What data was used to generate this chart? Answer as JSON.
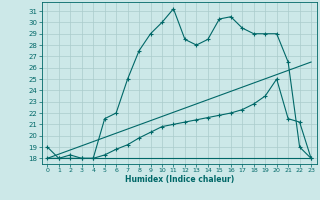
{
  "xlabel": "Humidex (Indice chaleur)",
  "ylabel": "",
  "bg_color": "#cce8e8",
  "grid_color": "#b8d8d8",
  "line_color": "#006868",
  "xlim": [
    -0.5,
    23.5
  ],
  "ylim": [
    17.5,
    31.8
  ],
  "xticks": [
    0,
    1,
    2,
    3,
    4,
    5,
    6,
    7,
    8,
    9,
    10,
    11,
    12,
    13,
    14,
    15,
    16,
    17,
    18,
    19,
    20,
    21,
    22,
    23
  ],
  "yticks": [
    18,
    19,
    20,
    21,
    22,
    23,
    24,
    25,
    26,
    27,
    28,
    29,
    30,
    31
  ],
  "line1_x": [
    0,
    1,
    2,
    3,
    4,
    5,
    6,
    7,
    8,
    9,
    10,
    11,
    12,
    13,
    14,
    15,
    16,
    17,
    18,
    19,
    20,
    21,
    22,
    23
  ],
  "line1_y": [
    19,
    18,
    18.3,
    18,
    18,
    21.5,
    22,
    25,
    27.5,
    29,
    30,
    31.2,
    28.5,
    28,
    28.5,
    30.3,
    30.5,
    29.5,
    29,
    29,
    29,
    26.5,
    19,
    18
  ],
  "line2_x": [
    0,
    1,
    2,
    3,
    4,
    5,
    6,
    7,
    8,
    9,
    10,
    11,
    12,
    13,
    14,
    15,
    16,
    17,
    18,
    19,
    20,
    21,
    22,
    23
  ],
  "line2_y": [
    18,
    18,
    18,
    18,
    18,
    18,
    18,
    18,
    18,
    18,
    18,
    18,
    18,
    18,
    18,
    18,
    18,
    18,
    18,
    18,
    18,
    18,
    18,
    18
  ],
  "line3_x": [
    0,
    1,
    2,
    3,
    4,
    5,
    6,
    7,
    8,
    9,
    10,
    11,
    12,
    13,
    14,
    15,
    16,
    17,
    18,
    19,
    20,
    21,
    22,
    23
  ],
  "line3_y": [
    18,
    18,
    18,
    18,
    18,
    18.3,
    18.8,
    19.2,
    19.8,
    20.3,
    20.8,
    21.0,
    21.2,
    21.4,
    21.6,
    21.8,
    22.0,
    22.3,
    22.8,
    23.5,
    25.0,
    21.5,
    21.2,
    18
  ],
  "line4_x": [
    0,
    23
  ],
  "line4_y": [
    18,
    26.5
  ]
}
